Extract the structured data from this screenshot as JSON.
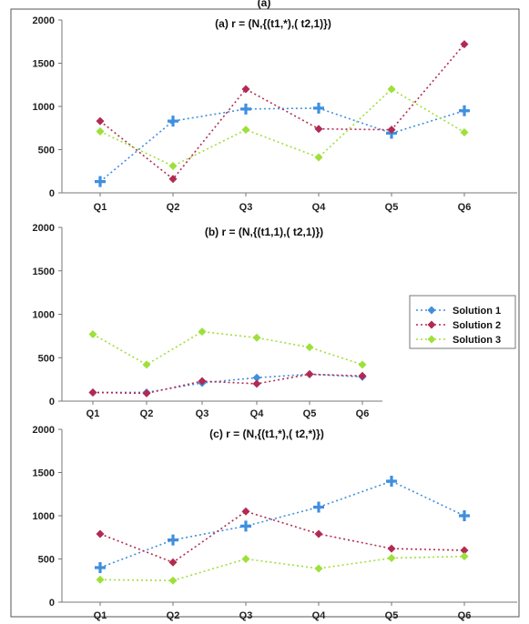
{
  "top_caption": "(a)",
  "colors": {
    "Solution 1": "#3f8fde",
    "Solution 2": "#b22a52",
    "Solution 3": "#9ee03a"
  },
  "chart_data": [
    {
      "type": "line",
      "title": "(a) r = (N,{(t1,*),( t2,1)})",
      "categories": [
        "Q1",
        "Q2",
        "Q3",
        "Q4",
        "Q5",
        "Q6"
      ],
      "ylim": [
        0,
        2000
      ],
      "yticks": [
        "0",
        "500",
        "1000",
        "1500",
        "2000"
      ],
      "series": [
        {
          "name": "Solution 1",
          "values": [
            130,
            830,
            970,
            980,
            690,
            950
          ]
        },
        {
          "name": "Solution 2",
          "values": [
            830,
            160,
            1200,
            740,
            730,
            1720
          ]
        },
        {
          "name": "Solution 3",
          "values": [
            710,
            310,
            730,
            410,
            1200,
            700
          ]
        }
      ]
    },
    {
      "type": "line",
      "title": "(b) r = (N,{(t1,1),( t2,1)})",
      "categories": [
        "Q1",
        "Q2",
        "Q3",
        "Q4",
        "Q5",
        "Q6"
      ],
      "ylim": [
        0,
        2000
      ],
      "yticks": [
        "0",
        "500",
        "1000",
        "1500",
        "2000"
      ],
      "legend": {
        "position": "right",
        "entries": [
          "Solution 1",
          "Solution 2",
          "Solution 3"
        ]
      },
      "series": [
        {
          "name": "Solution 1",
          "values": [
            100,
            100,
            210,
            270,
            310,
            280
          ]
        },
        {
          "name": "Solution 2",
          "values": [
            100,
            90,
            230,
            200,
            310,
            290
          ]
        },
        {
          "name": "Solution 3",
          "values": [
            770,
            420,
            800,
            730,
            620,
            420
          ]
        }
      ]
    },
    {
      "type": "line",
      "title": "(c) r = (N,{(t1,*),( t2,*)})",
      "categories": [
        "Q1",
        "Q2",
        "Q3",
        "Q4",
        "Q5",
        "Q6"
      ],
      "ylim": [
        0,
        2000
      ],
      "yticks": [
        "0",
        "500",
        "1000",
        "1500",
        "2000"
      ],
      "series": [
        {
          "name": "Solution 1",
          "values": [
            400,
            720,
            880,
            1100,
            1400,
            1000
          ]
        },
        {
          "name": "Solution 2",
          "values": [
            790,
            460,
            1050,
            790,
            620,
            600
          ]
        },
        {
          "name": "Solution 3",
          "values": [
            260,
            250,
            500,
            390,
            510,
            530
          ]
        }
      ]
    }
  ]
}
